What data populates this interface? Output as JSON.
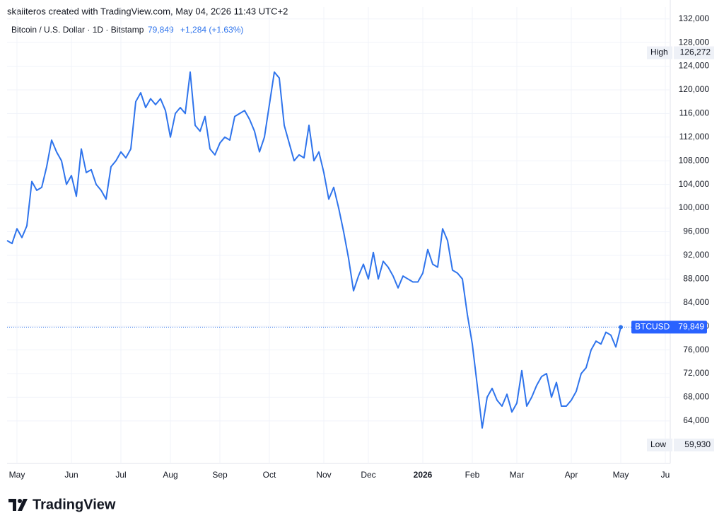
{
  "header": {
    "credit": "skaiiteros created with TradingView.com, May 04, 2026 11:43 UTC+2",
    "symbol": "Bitcoin / U.S. Dollar · 1D · Bitstamp",
    "change": "+1,284 (+1.63%)"
  },
  "footer": {
    "logo": "TradingView"
  },
  "chart_data": {
    "type": "line",
    "color": "#2f74ec",
    "grid": true,
    "categories": [
      null,
      null,
      "May",
      null,
      null,
      null,
      null,
      null,
      null,
      null,
      null,
      null,
      null,
      "Jun",
      null,
      null,
      null,
      null,
      null,
      null,
      null,
      null,
      null,
      "Jul",
      null,
      null,
      null,
      null,
      null,
      null,
      null,
      null,
      null,
      "Aug",
      null,
      null,
      null,
      null,
      null,
      null,
      null,
      null,
      null,
      "Sep",
      null,
      null,
      null,
      null,
      null,
      null,
      null,
      null,
      null,
      "Oct",
      null,
      null,
      null,
      null,
      null,
      null,
      null,
      null,
      null,
      null,
      "Nov",
      null,
      null,
      null,
      null,
      null,
      null,
      null,
      null,
      "Dec",
      null,
      null,
      null,
      null,
      null,
      null,
      null,
      null,
      null,
      null,
      "2026",
      null,
      null,
      null,
      null,
      null,
      null,
      null,
      null,
      null,
      "Feb",
      null,
      null,
      null,
      null,
      null,
      null,
      null,
      null,
      "Mar",
      null,
      null,
      null,
      null,
      null,
      null,
      null,
      null,
      null,
      null,
      "Apr",
      null,
      null,
      null,
      null,
      null,
      null,
      null,
      null,
      null,
      "May",
      null,
      null,
      null,
      null,
      null,
      null,
      null,
      null,
      "Ju"
    ],
    "values": [
      94500,
      94000,
      96500,
      95000,
      97000,
      104500,
      103000,
      103500,
      107000,
      111500,
      109500,
      108000,
      104000,
      105500,
      102000,
      110000,
      106000,
      106500,
      104000,
      103000,
      101500,
      107000,
      108000,
      109500,
      108500,
      110000,
      118000,
      119500,
      117000,
      118500,
      117500,
      118500,
      116500,
      112000,
      116000,
      117000,
      116000,
      123000,
      114000,
      113000,
      115500,
      110000,
      109000,
      111000,
      112000,
      111500,
      115500,
      116000,
      116500,
      115000,
      113000,
      109500,
      112000,
      117500,
      123000,
      122000,
      114000,
      111000,
      108000,
      109000,
      108500,
      114000,
      108000,
      109500,
      106000,
      101500,
      103500,
      100000,
      96000,
      91500,
      86000,
      88500,
      90500,
      88000,
      92500,
      88000,
      91000,
      90000,
      88500,
      86500,
      88500,
      88000,
      87500,
      87500,
      89000,
      93000,
      90500,
      90000,
      96500,
      94500,
      89500,
      89000,
      88000,
      82000,
      77000,
      70000,
      62800,
      68000,
      69500,
      67500,
      66500,
      68500,
      65500,
      67000,
      72500,
      66500,
      68000,
      70000,
      71500,
      72000,
      68000,
      70500,
      66500,
      66500,
      67500,
      69000,
      72000,
      73000,
      76000,
      77500,
      77000,
      79000,
      78500,
      76500,
      79849,
      null,
      null,
      null,
      null,
      null,
      null,
      null,
      null,
      null
    ],
    "ylim": [
      56800,
      134000
    ],
    "yticks": [
      {
        "value": 64000,
        "label": "64,000"
      },
      {
        "value": 68000,
        "label": "68,000"
      },
      {
        "value": 72000,
        "label": "72,000"
      },
      {
        "value": 76000,
        "label": "76,000"
      },
      {
        "value": 80000,
        "label": "80,000"
      },
      {
        "value": 84000,
        "label": "84,000"
      },
      {
        "value": 88000,
        "label": "88,000"
      },
      {
        "value": 92000,
        "label": "92,000"
      },
      {
        "value": 96000,
        "label": "96,000"
      },
      {
        "value": 100000,
        "label": "100,000"
      },
      {
        "value": 104000,
        "label": "104,000"
      },
      {
        "value": 108000,
        "label": "108,000"
      },
      {
        "value": 112000,
        "label": "112,000"
      },
      {
        "value": 116000,
        "label": "116,000"
      },
      {
        "value": 120000,
        "label": "120,000"
      },
      {
        "value": 124000,
        "label": "124,000"
      },
      {
        "value": 128000,
        "label": "128,000"
      },
      {
        "value": 132000,
        "label": "132,000"
      }
    ],
    "markers": [
      {
        "name": "High",
        "value": 126272,
        "value_label": "126,272"
      },
      {
        "name": "Low",
        "value": 59930,
        "value_label": "59,930"
      }
    ],
    "last": {
      "name": "BTCUSD",
      "value": 79849,
      "value_label": "79,849"
    }
  }
}
